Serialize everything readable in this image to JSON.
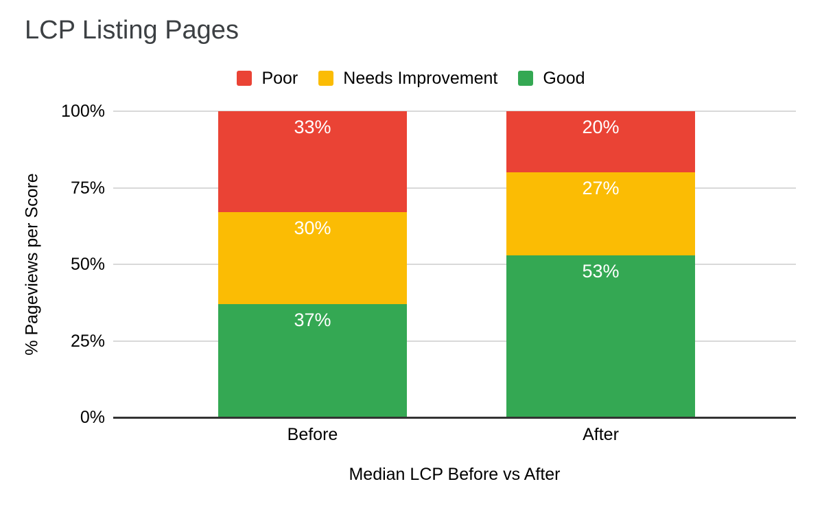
{
  "title": "LCP Listing Pages",
  "chart_data": {
    "type": "bar",
    "stacked": true,
    "title": "LCP Listing Pages",
    "categories": [
      "Before",
      "After"
    ],
    "series": [
      {
        "name": "Poor",
        "color": "#EA4335",
        "values": [
          33,
          20
        ]
      },
      {
        "name": "Needs Improvement",
        "color": "#FBBC04",
        "values": [
          30,
          27
        ]
      },
      {
        "name": "Good",
        "color": "#34A853",
        "values": [
          37,
          53
        ]
      }
    ],
    "value_suffix": "%",
    "xlabel": "Median LCP Before vs After",
    "ylabel": "% Pageviews per Score",
    "ylim": [
      0,
      100
    ],
    "yticks": [
      0,
      25,
      50,
      75,
      100
    ],
    "ytick_labels": [
      "0%",
      "25%",
      "50%",
      "75%",
      "100%"
    ],
    "legend": [
      "Poor",
      "Needs Improvement",
      "Good"
    ],
    "legend_position": "top",
    "grid": "horizontal",
    "stack_order_top_to_bottom": [
      "Poor",
      "Needs Improvement",
      "Good"
    ]
  },
  "colors": {
    "background": "#ffffff",
    "gridline": "#d9d9d9",
    "axis_line": "#333333",
    "title_text": "#3c4043",
    "tick_text": "#000000",
    "bar_label_text": "#ffffff"
  }
}
